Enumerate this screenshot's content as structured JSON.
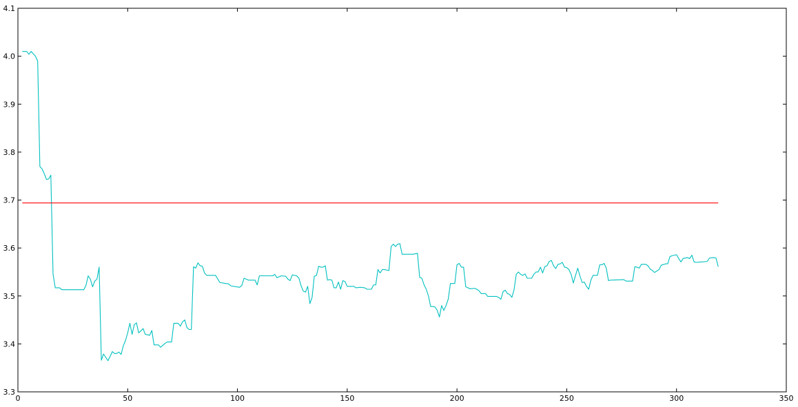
{
  "chart_data": {
    "type": "line",
    "title": "",
    "xlabel": "",
    "ylabel": "",
    "xlim": [
      0,
      350
    ],
    "ylim": [
      3.3,
      4.1
    ],
    "grid": false,
    "x_ticks": [
      "0",
      "50",
      "100",
      "150",
      "200",
      "250",
      "300",
      "350"
    ],
    "x_tick_values": [
      0,
      50,
      100,
      150,
      200,
      250,
      300,
      350
    ],
    "y_ticks": [
      "3.3",
      "3.4",
      "3.5",
      "3.6",
      "3.7",
      "3.8",
      "3.9",
      "4.0",
      "4.1"
    ],
    "y_tick_values": [
      3.3,
      3.4,
      3.5,
      3.6,
      3.7,
      3.8,
      3.9,
      4.0,
      4.1
    ],
    "series": [
      {
        "color": "#00bfbf",
        "points": [
          [
            2,
            4.01
          ],
          [
            4,
            4.01
          ],
          [
            5,
            4.004
          ],
          [
            6,
            4.01
          ],
          [
            8,
            4.0
          ],
          [
            9,
            3.99
          ],
          [
            10,
            3.77
          ],
          [
            11,
            3.765
          ],
          [
            12,
            3.755
          ],
          [
            13,
            3.743
          ],
          [
            14,
            3.744
          ],
          [
            15,
            3.752
          ],
          [
            16,
            3.546
          ],
          [
            17,
            3.517
          ],
          [
            19,
            3.517
          ],
          [
            20,
            3.513
          ],
          [
            30,
            3.513
          ],
          [
            31,
            3.522
          ],
          [
            32,
            3.542
          ],
          [
            33,
            3.535
          ],
          [
            34,
            3.519
          ],
          [
            35,
            3.531
          ],
          [
            36,
            3.535
          ],
          [
            37,
            3.56
          ],
          [
            38,
            3.366
          ],
          [
            39,
            3.379
          ],
          [
            40,
            3.372
          ],
          [
            41,
            3.365
          ],
          [
            42,
            3.374
          ],
          [
            43,
            3.384
          ],
          [
            44,
            3.38
          ],
          [
            45,
            3.38
          ],
          [
            46,
            3.383
          ],
          [
            47,
            3.378
          ],
          [
            48,
            3.396
          ],
          [
            49,
            3.407
          ],
          [
            50,
            3.423
          ],
          [
            51,
            3.443
          ],
          [
            52,
            3.42
          ],
          [
            53,
            3.44
          ],
          [
            54,
            3.444
          ],
          [
            55,
            3.423
          ],
          [
            56,
            3.427
          ],
          [
            57,
            3.432
          ],
          [
            58,
            3.42
          ],
          [
            60,
            3.418
          ],
          [
            61,
            3.428
          ],
          [
            62,
            3.398
          ],
          [
            64,
            3.398
          ],
          [
            65,
            3.393
          ],
          [
            66,
            3.397
          ],
          [
            67,
            3.401
          ],
          [
            68,
            3.404
          ],
          [
            70,
            3.404
          ],
          [
            71,
            3.443
          ],
          [
            73,
            3.443
          ],
          [
            74,
            3.437
          ],
          [
            75,
            3.446
          ],
          [
            76,
            3.45
          ],
          [
            77,
            3.434
          ],
          [
            78,
            3.43
          ],
          [
            79,
            3.43
          ],
          [
            80,
            3.561
          ],
          [
            81,
            3.558
          ],
          [
            82,
            3.569
          ],
          [
            83,
            3.563
          ],
          [
            84,
            3.562
          ],
          [
            85,
            3.548
          ],
          [
            86,
            3.543
          ],
          [
            90,
            3.543
          ],
          [
            92,
            3.528
          ],
          [
            96,
            3.525
          ],
          [
            97,
            3.521
          ],
          [
            101,
            3.518
          ],
          [
            102,
            3.522
          ],
          [
            103,
            3.537
          ],
          [
            104,
            3.535
          ],
          [
            105,
            3.533
          ],
          [
            108,
            3.533
          ],
          [
            109,
            3.523
          ],
          [
            110,
            3.542
          ],
          [
            116,
            3.542
          ],
          [
            117,
            3.545
          ],
          [
            118,
            3.538
          ],
          [
            120,
            3.542
          ],
          [
            122,
            3.541
          ],
          [
            123,
            3.535
          ],
          [
            124,
            3.532
          ],
          [
            125,
            3.544
          ],
          [
            127,
            3.542
          ],
          [
            128,
            3.537
          ],
          [
            129,
            3.521
          ],
          [
            130,
            3.51
          ],
          [
            131,
            3.508
          ],
          [
            132,
            3.52
          ],
          [
            133,
            3.484
          ],
          [
            134,
            3.497
          ],
          [
            135,
            3.541
          ],
          [
            136,
            3.543
          ],
          [
            137,
            3.562
          ],
          [
            138,
            3.56
          ],
          [
            139,
            3.56
          ],
          [
            140,
            3.563
          ],
          [
            141,
            3.533
          ],
          [
            142,
            3.534
          ],
          [
            143,
            3.533
          ],
          [
            144,
            3.517
          ],
          [
            145,
            3.517
          ],
          [
            146,
            3.529
          ],
          [
            147,
            3.514
          ],
          [
            148,
            3.532
          ],
          [
            149,
            3.53
          ],
          [
            150,
            3.52
          ],
          [
            153,
            3.52
          ],
          [
            154,
            3.517
          ],
          [
            156,
            3.518
          ],
          [
            158,
            3.517
          ],
          [
            159,
            3.514
          ],
          [
            161,
            3.514
          ],
          [
            162,
            3.523
          ],
          [
            163,
            3.523
          ],
          [
            164,
            3.555
          ],
          [
            165,
            3.548
          ],
          [
            166,
            3.555
          ],
          [
            167,
            3.555
          ],
          [
            169,
            3.553
          ],
          [
            170,
            3.603
          ],
          [
            171,
            3.608
          ],
          [
            172,
            3.603
          ],
          [
            173,
            3.608
          ],
          [
            174,
            3.609
          ],
          [
            175,
            3.587
          ],
          [
            180,
            3.587
          ],
          [
            182,
            3.589
          ],
          [
            183,
            3.539
          ],
          [
            184,
            3.537
          ],
          [
            185,
            3.523
          ],
          [
            186,
            3.514
          ],
          [
            187,
            3.5
          ],
          [
            188,
            3.478
          ],
          [
            189,
            3.478
          ],
          [
            190,
            3.477
          ],
          [
            191,
            3.47
          ],
          [
            192,
            3.456
          ],
          [
            193,
            3.48
          ],
          [
            194,
            3.47
          ],
          [
            195,
            3.48
          ],
          [
            196,
            3.493
          ],
          [
            197,
            3.526
          ],
          [
            199,
            3.526
          ],
          [
            200,
            3.565
          ],
          [
            201,
            3.568
          ],
          [
            202,
            3.56
          ],
          [
            203,
            3.56
          ],
          [
            204,
            3.519
          ],
          [
            205,
            3.517
          ],
          [
            206,
            3.515
          ],
          [
            208,
            3.516
          ],
          [
            209,
            3.514
          ],
          [
            210,
            3.511
          ],
          [
            211,
            3.505
          ],
          [
            213,
            3.505
          ],
          [
            214,
            3.499
          ],
          [
            218,
            3.499
          ],
          [
            219,
            3.497
          ],
          [
            220,
            3.493
          ],
          [
            221,
            3.509
          ],
          [
            222,
            3.512
          ],
          [
            223,
            3.505
          ],
          [
            224,
            3.503
          ],
          [
            225,
            3.497
          ],
          [
            226,
            3.513
          ],
          [
            227,
            3.545
          ],
          [
            228,
            3.55
          ],
          [
            229,
            3.545
          ],
          [
            230,
            3.543
          ],
          [
            231,
            3.546
          ],
          [
            232,
            3.537
          ],
          [
            234,
            3.537
          ],
          [
            235,
            3.545
          ],
          [
            236,
            3.55
          ],
          [
            237,
            3.55
          ],
          [
            238,
            3.56
          ],
          [
            239,
            3.548
          ],
          [
            240,
            3.561
          ],
          [
            241,
            3.563
          ],
          [
            242,
            3.572
          ],
          [
            243,
            3.574
          ],
          [
            244,
            3.563
          ],
          [
            245,
            3.557
          ],
          [
            246,
            3.566
          ],
          [
            247,
            3.567
          ],
          [
            248,
            3.57
          ],
          [
            249,
            3.56
          ],
          [
            250,
            3.559
          ],
          [
            251,
            3.555
          ],
          [
            252,
            3.545
          ],
          [
            253,
            3.527
          ],
          [
            254,
            3.543
          ],
          [
            255,
            3.558
          ],
          [
            256,
            3.542
          ],
          [
            257,
            3.528
          ],
          [
            258,
            3.529
          ],
          [
            259,
            3.52
          ],
          [
            260,
            3.514
          ],
          [
            261,
            3.533
          ],
          [
            262,
            3.543
          ],
          [
            264,
            3.543
          ],
          [
            265,
            3.565
          ],
          [
            266,
            3.565
          ],
          [
            267,
            3.568
          ],
          [
            268,
            3.558
          ],
          [
            269,
            3.532
          ],
          [
            270,
            3.533
          ],
          [
            276,
            3.534
          ],
          [
            277,
            3.531
          ],
          [
            280,
            3.531
          ],
          [
            281,
            3.561
          ],
          [
            282,
            3.56
          ],
          [
            283,
            3.558
          ],
          [
            284,
            3.566
          ],
          [
            286,
            3.566
          ],
          [
            287,
            3.563
          ],
          [
            288,
            3.556
          ],
          [
            289,
            3.553
          ],
          [
            290,
            3.549
          ],
          [
            291,
            3.552
          ],
          [
            292,
            3.555
          ],
          [
            293,
            3.564
          ],
          [
            295,
            3.567
          ],
          [
            296,
            3.567
          ],
          [
            297,
            3.582
          ],
          [
            298,
            3.584
          ],
          [
            300,
            3.586
          ],
          [
            301,
            3.578
          ],
          [
            302,
            3.571
          ],
          [
            303,
            3.578
          ],
          [
            305,
            3.58
          ],
          [
            306,
            3.578
          ],
          [
            307,
            3.585
          ],
          [
            308,
            3.571
          ],
          [
            309,
            3.57
          ],
          [
            314,
            3.572
          ],
          [
            315,
            3.579
          ],
          [
            317,
            3.58
          ],
          [
            318,
            3.579
          ],
          [
            319,
            3.561
          ]
        ]
      },
      {
        "color": "#ff0000",
        "points": [
          [
            2,
            3.694
          ],
          [
            319,
            3.694
          ]
        ]
      }
    ]
  }
}
